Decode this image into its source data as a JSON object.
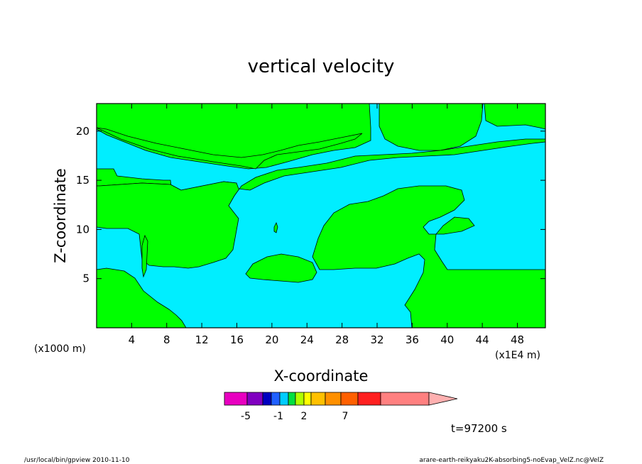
{
  "chart_data": {
    "type": "contour",
    "title": "vertical velocity",
    "xlabel": "X-coordinate",
    "ylabel": "Z-coordinate",
    "x_units_left": "(x1000 m)",
    "x_units_right": "(x1E4 m)",
    "xlim": [
      0,
      51.2
    ],
    "ylim": [
      0,
      22.8
    ],
    "x_ticks": [
      4,
      8,
      12,
      16,
      20,
      24,
      28,
      32,
      36,
      40,
      44,
      48
    ],
    "y_ticks": [
      5,
      10,
      15,
      20
    ],
    "levels": {
      "negative_color": "#00eeff",
      "positive_color": "#00ff00",
      "contour_line_color": "#000000"
    },
    "colorbar": {
      "colors": [
        "#e800c0",
        "#8000c0",
        "#0000c0",
        "#2060ff",
        "#00ccff",
        "#00e040",
        "#b0ff00",
        "#ffff00",
        "#ffc000",
        "#ff9000",
        "#ff6000",
        "#ff2020",
        "#ff8080",
        "#ffb0b0"
      ],
      "tick_labels": [
        "-5",
        "-1",
        "2",
        "7"
      ]
    }
  },
  "annotations": {
    "time": "t=97200 s",
    "footer_left": "/usr/local/bin/gpview  2010-11-10",
    "footer_right": "arare-earth-reikyaku2K-absorbing5-noEvap_VelZ.nc@VelZ"
  }
}
